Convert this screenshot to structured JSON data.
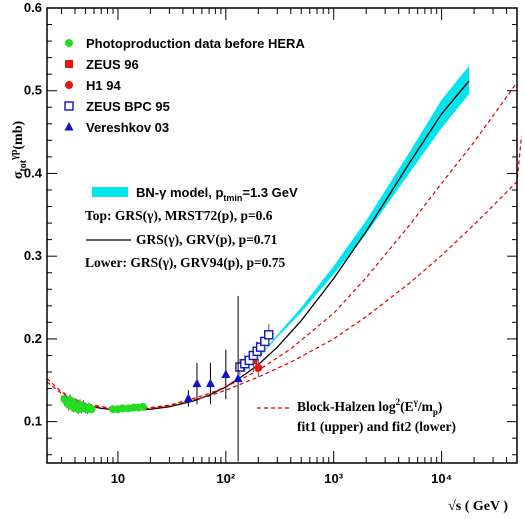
{
  "chart_data": {
    "type": "scatter",
    "xscale": "log",
    "xlim": [
      2.2,
      50000
    ],
    "ylim": [
      0.05,
      0.6
    ],
    "ylabel": "σtot γp(mb)",
    "xlabel": "√s ( GeV )",
    "xticks": [
      {
        "label": "10",
        "value": 10
      },
      {
        "label": "10²",
        "value": 100
      },
      {
        "label": "10³",
        "value": 1000
      },
      {
        "label": "10⁴",
        "value": 10000
      }
    ],
    "yticks": [
      {
        "label": "0.1",
        "value": 0.1
      },
      {
        "label": "0.2",
        "value": 0.2
      },
      {
        "label": "0.3",
        "value": 0.3
      },
      {
        "label": "0.4",
        "value": 0.4
      },
      {
        "label": "0.5",
        "value": 0.5
      },
      {
        "label": "0.6",
        "value": 0.6
      }
    ],
    "legend": [
      {
        "name": "Photoproduction data before HERA",
        "marker": "circle",
        "color": "#22dd22"
      },
      {
        "name": "ZEUS 96",
        "marker": "square",
        "color": "#ee1111"
      },
      {
        "name": "H1 94",
        "marker": "circle",
        "color": "#ee1111"
      },
      {
        "name": "ZEUS BPC 95",
        "marker": "open-square",
        "color": "#1111cc"
      },
      {
        "name": "Vereshkov 03",
        "marker": "triangle",
        "color": "#1111cc"
      }
    ],
    "model_legend": {
      "band_label": "BN-γ model, p",
      "band_sub": "tmin",
      "band_rest": "=1.3 GeV",
      "band_color": "#00e5ee",
      "top_text": "Top: GRS(γ), MRST72(p), p=0.6",
      "mid_text": "GRS(γ), GRV(p), p=0.71",
      "lower_text": "Lower: GRS(γ), GRV94(p), p=0.75"
    },
    "bh_legend": {
      "line1_prefix": "Block-Halzen log",
      "line1_sup": "2",
      "line1_mid": "(E",
      "line1_sup2": "γ",
      "line1_mid2": "/m",
      "line1_sub": "p",
      "line1_end": ")",
      "line2": "fit1 (upper) and fit2 (lower)",
      "color": "#dd0000"
    },
    "series": [
      {
        "name": "Photoproduction data before HERA",
        "marker": "circle",
        "color": "#22dd22",
        "points": [
          {
            "x": 3.2,
            "y": 0.127,
            "err": 0.008
          },
          {
            "x": 3.35,
            "y": 0.124,
            "err": 0.008
          },
          {
            "x": 3.5,
            "y": 0.121,
            "err": 0.008
          },
          {
            "x": 3.6,
            "y": 0.126,
            "err": 0.007
          },
          {
            "x": 3.75,
            "y": 0.119,
            "err": 0.007
          },
          {
            "x": 3.9,
            "y": 0.117,
            "err": 0.006
          },
          {
            "x": 4.0,
            "y": 0.122,
            "err": 0.007
          },
          {
            "x": 4.15,
            "y": 0.118,
            "err": 0.006
          },
          {
            "x": 4.3,
            "y": 0.115,
            "err": 0.006
          },
          {
            "x": 4.45,
            "y": 0.12,
            "err": 0.007
          },
          {
            "x": 4.6,
            "y": 0.116,
            "err": 0.006
          },
          {
            "x": 4.8,
            "y": 0.119,
            "err": 0.007
          },
          {
            "x": 5.0,
            "y": 0.116,
            "err": 0.006
          },
          {
            "x": 5.2,
            "y": 0.115,
            "err": 0.006
          },
          {
            "x": 5.4,
            "y": 0.117,
            "err": 0.006
          },
          {
            "x": 5.7,
            "y": 0.115,
            "err": 0.005
          },
          {
            "x": 9.0,
            "y": 0.115,
            "err": 0.002
          },
          {
            "x": 10.0,
            "y": 0.115,
            "err": 0.002
          },
          {
            "x": 11.0,
            "y": 0.116,
            "err": 0.002
          },
          {
            "x": 12.5,
            "y": 0.116,
            "err": 0.002
          },
          {
            "x": 14.0,
            "y": 0.117,
            "err": 0.002
          },
          {
            "x": 15.5,
            "y": 0.117,
            "err": 0.002
          },
          {
            "x": 17.0,
            "y": 0.118,
            "err": 0.002
          }
        ]
      },
      {
        "name": "ZEUS 96",
        "marker": "square",
        "color": "#ee1111",
        "points": [
          {
            "x": 180,
            "y": 0.174,
            "err": 0.014
          }
        ]
      },
      {
        "name": "H1 94",
        "marker": "circle",
        "color": "#ee1111",
        "points": [
          {
            "x": 200,
            "y": 0.165,
            "err": 0.011
          }
        ]
      },
      {
        "name": "ZEUS BPC 95",
        "marker": "open-square",
        "color": "#1111cc",
        "points": [
          {
            "x": 135,
            "y": 0.166,
            "err": 0.01
          },
          {
            "x": 150,
            "y": 0.17,
            "err": 0.01
          },
          {
            "x": 165,
            "y": 0.174,
            "err": 0.011
          },
          {
            "x": 180,
            "y": 0.18,
            "err": 0.011
          },
          {
            "x": 195,
            "y": 0.185,
            "err": 0.012
          },
          {
            "x": 210,
            "y": 0.19,
            "err": 0.012
          },
          {
            "x": 230,
            "y": 0.197,
            "err": 0.013
          },
          {
            "x": 250,
            "y": 0.205,
            "err": 0.013
          }
        ]
      },
      {
        "name": "Vereshkov 03",
        "marker": "triangle",
        "color": "#1111cc",
        "points": [
          {
            "x": 45,
            "y": 0.128,
            "err": 0.01
          },
          {
            "x": 54,
            "y": 0.146,
            "err": 0.025
          },
          {
            "x": 72,
            "y": 0.146,
            "err": 0.025
          },
          {
            "x": 100,
            "y": 0.157,
            "err": 0.03
          },
          {
            "x": 130,
            "y": 0.152,
            "err": 0.1
          }
        ]
      }
    ],
    "curves": [
      {
        "name": "BN-γ band upper",
        "role": "band-upper",
        "color": "#00e5ee",
        "points": [
          [
            180,
            0.17
          ],
          [
            300,
            0.205
          ],
          [
            500,
            0.238
          ],
          [
            1000,
            0.288
          ],
          [
            2000,
            0.343
          ],
          [
            5000,
            0.425
          ],
          [
            10000,
            0.489
          ],
          [
            18000,
            0.53
          ]
        ]
      },
      {
        "name": "BN-γ band lower",
        "role": "band-lower",
        "color": "#00e5ee",
        "points": [
          [
            180,
            0.17
          ],
          [
            300,
            0.202
          ],
          [
            500,
            0.232
          ],
          [
            1000,
            0.278
          ],
          [
            2000,
            0.327
          ],
          [
            5000,
            0.4
          ],
          [
            10000,
            0.455
          ],
          [
            18000,
            0.496
          ]
        ]
      },
      {
        "name": "GRS(γ), GRV(p), p=0.71",
        "role": "solid",
        "color": "#000000",
        "points": [
          [
            3,
            0.131
          ],
          [
            4,
            0.124
          ],
          [
            5,
            0.12
          ],
          [
            7,
            0.116
          ],
          [
            10,
            0.114
          ],
          [
            15,
            0.114
          ],
          [
            20,
            0.115
          ],
          [
            30,
            0.118
          ],
          [
            50,
            0.125
          ],
          [
            70,
            0.132
          ],
          [
            100,
            0.142
          ],
          [
            150,
            0.157
          ],
          [
            200,
            0.169
          ],
          [
            300,
            0.19
          ],
          [
            500,
            0.222
          ],
          [
            1000,
            0.273
          ],
          [
            2000,
            0.33
          ],
          [
            5000,
            0.412
          ],
          [
            10000,
            0.472
          ],
          [
            18000,
            0.512
          ]
        ]
      },
      {
        "name": "Block-Halzen fit1 (upper)",
        "role": "dashed",
        "color": "#dd0000",
        "points": [
          [
            2.2,
            0.152
          ],
          [
            3,
            0.136
          ],
          [
            4,
            0.127
          ],
          [
            5,
            0.122
          ],
          [
            7,
            0.118
          ],
          [
            10,
            0.116
          ],
          [
            15,
            0.116
          ],
          [
            20,
            0.117
          ],
          [
            30,
            0.12
          ],
          [
            50,
            0.128
          ],
          [
            70,
            0.134
          ],
          [
            100,
            0.142
          ],
          [
            200,
            0.162
          ],
          [
            400,
            0.188
          ],
          [
            1000,
            0.231
          ],
          [
            2000,
            0.274
          ],
          [
            5000,
            0.337
          ],
          [
            10000,
            0.388
          ],
          [
            20000,
            0.438
          ],
          [
            50000,
            0.51
          ]
        ]
      },
      {
        "name": "Block-Halzen fit2 (lower)",
        "role": "dashed",
        "color": "#dd0000",
        "points": [
          [
            2.2,
            0.148
          ],
          [
            3,
            0.134
          ],
          [
            4,
            0.126
          ],
          [
            5,
            0.121
          ],
          [
            7,
            0.117
          ],
          [
            10,
            0.115
          ],
          [
            15,
            0.115
          ],
          [
            20,
            0.116
          ],
          [
            30,
            0.119
          ],
          [
            50,
            0.126
          ],
          [
            70,
            0.131
          ],
          [
            100,
            0.138
          ],
          [
            200,
            0.154
          ],
          [
            400,
            0.172
          ],
          [
            1000,
            0.2
          ],
          [
            2000,
            0.227
          ],
          [
            5000,
            0.267
          ],
          [
            10000,
            0.301
          ],
          [
            20000,
            0.338
          ],
          [
            50000,
            0.39
          ],
          [
            55000,
            0.445
          ]
        ]
      }
    ]
  }
}
